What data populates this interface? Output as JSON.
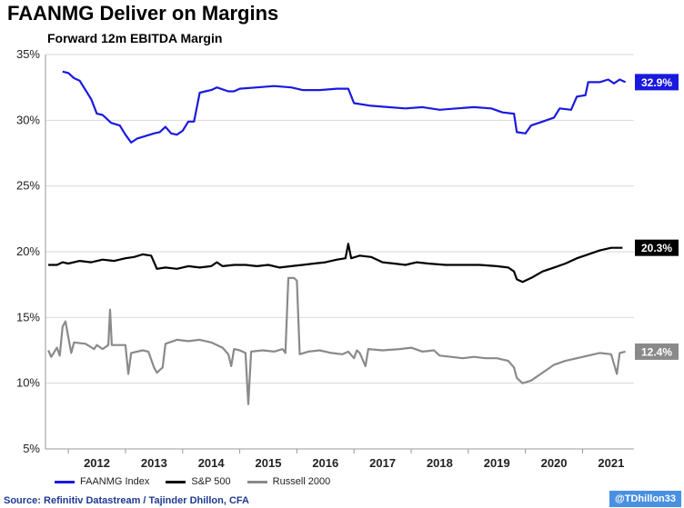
{
  "chart_data": {
    "type": "line",
    "title": "FAANMG Deliver on Margins",
    "subtitle": "Forward 12m EBITDA Margin",
    "xlabel": "",
    "ylabel": "",
    "y_ticks": [
      "5%",
      "10%",
      "15%",
      "20%",
      "25%",
      "30%",
      "35%"
    ],
    "ylim": [
      5,
      35
    ],
    "x_ticks": [
      "2012",
      "2013",
      "2014",
      "2015",
      "2016",
      "2017",
      "2018",
      "2019",
      "2020",
      "2021"
    ],
    "xlim": [
      2011.6,
      2021.9
    ],
    "grid": "horizontal",
    "legend_position": "bottom",
    "series": [
      {
        "name": "FAANMG Index",
        "color": "#1a1adf",
        "end_label": "32.9%",
        "points": [
          [
            2011.9,
            33.7
          ],
          [
            2012.0,
            33.6
          ],
          [
            2012.1,
            33.2
          ],
          [
            2012.2,
            33.0
          ],
          [
            2012.3,
            32.3
          ],
          [
            2012.4,
            31.6
          ],
          [
            2012.5,
            30.5
          ],
          [
            2012.6,
            30.4
          ],
          [
            2012.75,
            29.8
          ],
          [
            2012.9,
            29.6
          ],
          [
            2013.0,
            28.9
          ],
          [
            2013.1,
            28.3
          ],
          [
            2013.2,
            28.6
          ],
          [
            2013.35,
            28.8
          ],
          [
            2013.5,
            29.0
          ],
          [
            2013.6,
            29.1
          ],
          [
            2013.7,
            29.5
          ],
          [
            2013.8,
            29.0
          ],
          [
            2013.9,
            28.9
          ],
          [
            2014.0,
            29.2
          ],
          [
            2014.1,
            29.9
          ],
          [
            2014.2,
            29.9
          ],
          [
            2014.3,
            32.1
          ],
          [
            2014.4,
            32.2
          ],
          [
            2014.5,
            32.3
          ],
          [
            2014.6,
            32.5
          ],
          [
            2014.8,
            32.2
          ],
          [
            2014.9,
            32.2
          ],
          [
            2015.0,
            32.4
          ],
          [
            2015.3,
            32.5
          ],
          [
            2015.6,
            32.6
          ],
          [
            2015.9,
            32.5
          ],
          [
            2016.1,
            32.3
          ],
          [
            2016.4,
            32.3
          ],
          [
            2016.7,
            32.4
          ],
          [
            2016.9,
            32.4
          ],
          [
            2017.0,
            31.3
          ],
          [
            2017.3,
            31.1
          ],
          [
            2017.6,
            31.0
          ],
          [
            2017.9,
            30.9
          ],
          [
            2018.2,
            31.0
          ],
          [
            2018.5,
            30.8
          ],
          [
            2018.8,
            30.9
          ],
          [
            2019.1,
            31.0
          ],
          [
            2019.4,
            30.9
          ],
          [
            2019.6,
            30.6
          ],
          [
            2019.8,
            30.5
          ],
          [
            2019.85,
            29.1
          ],
          [
            2020.0,
            29.0
          ],
          [
            2020.1,
            29.6
          ],
          [
            2020.3,
            29.9
          ],
          [
            2020.5,
            30.2
          ],
          [
            2020.6,
            30.9
          ],
          [
            2020.8,
            30.8
          ],
          [
            2020.9,
            31.8
          ],
          [
            2021.05,
            31.9
          ],
          [
            2021.1,
            32.9
          ],
          [
            2021.3,
            32.9
          ],
          [
            2021.45,
            33.1
          ],
          [
            2021.55,
            32.8
          ],
          [
            2021.65,
            33.1
          ],
          [
            2021.75,
            32.9
          ]
        ]
      },
      {
        "name": "S&P 500",
        "color": "#000000",
        "end_label": "20.3%",
        "points": [
          [
            2011.65,
            19.0
          ],
          [
            2011.8,
            19.0
          ],
          [
            2011.9,
            19.2
          ],
          [
            2012.0,
            19.1
          ],
          [
            2012.2,
            19.3
          ],
          [
            2012.4,
            19.2
          ],
          [
            2012.6,
            19.4
          ],
          [
            2012.8,
            19.3
          ],
          [
            2013.0,
            19.5
          ],
          [
            2013.15,
            19.6
          ],
          [
            2013.3,
            19.8
          ],
          [
            2013.45,
            19.7
          ],
          [
            2013.55,
            18.7
          ],
          [
            2013.7,
            18.8
          ],
          [
            2013.9,
            18.7
          ],
          [
            2014.1,
            18.9
          ],
          [
            2014.3,
            18.8
          ],
          [
            2014.5,
            18.9
          ],
          [
            2014.6,
            19.2
          ],
          [
            2014.7,
            18.9
          ],
          [
            2014.9,
            19.0
          ],
          [
            2015.1,
            19.0
          ],
          [
            2015.3,
            18.9
          ],
          [
            2015.5,
            19.0
          ],
          [
            2015.7,
            18.8
          ],
          [
            2015.9,
            18.9
          ],
          [
            2016.1,
            19.0
          ],
          [
            2016.3,
            19.1
          ],
          [
            2016.5,
            19.2
          ],
          [
            2016.7,
            19.4
          ],
          [
            2016.85,
            19.5
          ],
          [
            2016.9,
            20.6
          ],
          [
            2016.95,
            19.5
          ],
          [
            2017.1,
            19.7
          ],
          [
            2017.3,
            19.6
          ],
          [
            2017.5,
            19.2
          ],
          [
            2017.7,
            19.1
          ],
          [
            2017.9,
            19.0
          ],
          [
            2018.1,
            19.2
          ],
          [
            2018.3,
            19.1
          ],
          [
            2018.6,
            19.0
          ],
          [
            2018.9,
            19.0
          ],
          [
            2019.2,
            19.0
          ],
          [
            2019.5,
            18.9
          ],
          [
            2019.7,
            18.8
          ],
          [
            2019.8,
            18.5
          ],
          [
            2019.85,
            17.9
          ],
          [
            2019.95,
            17.7
          ],
          [
            2020.1,
            18.0
          ],
          [
            2020.3,
            18.5
          ],
          [
            2020.5,
            18.8
          ],
          [
            2020.7,
            19.1
          ],
          [
            2020.9,
            19.5
          ],
          [
            2021.1,
            19.8
          ],
          [
            2021.3,
            20.1
          ],
          [
            2021.5,
            20.3
          ],
          [
            2021.7,
            20.3
          ]
        ]
      },
      {
        "name": "Russell 2000",
        "color": "#8a8a8a",
        "end_label": "12.4%",
        "points": [
          [
            2011.65,
            12.5
          ],
          [
            2011.7,
            12.0
          ],
          [
            2011.8,
            12.7
          ],
          [
            2011.85,
            12.1
          ],
          [
            2011.9,
            14.3
          ],
          [
            2011.95,
            14.7
          ],
          [
            2012.0,
            13.5
          ],
          [
            2012.05,
            12.3
          ],
          [
            2012.1,
            13.1
          ],
          [
            2012.3,
            13.0
          ],
          [
            2012.45,
            12.6
          ],
          [
            2012.5,
            12.9
          ],
          [
            2012.6,
            12.6
          ],
          [
            2012.7,
            12.9
          ],
          [
            2012.73,
            15.6
          ],
          [
            2012.76,
            12.9
          ],
          [
            2012.9,
            12.9
          ],
          [
            2013.0,
            12.9
          ],
          [
            2013.05,
            10.7
          ],
          [
            2013.1,
            12.3
          ],
          [
            2013.3,
            12.5
          ],
          [
            2013.4,
            12.4
          ],
          [
            2013.5,
            11.2
          ],
          [
            2013.55,
            10.8
          ],
          [
            2013.65,
            11.2
          ],
          [
            2013.7,
            13.0
          ],
          [
            2013.9,
            13.3
          ],
          [
            2014.1,
            13.2
          ],
          [
            2014.3,
            13.3
          ],
          [
            2014.5,
            13.1
          ],
          [
            2014.7,
            12.7
          ],
          [
            2014.8,
            12.2
          ],
          [
            2014.85,
            11.3
          ],
          [
            2014.9,
            12.6
          ],
          [
            2015.0,
            12.5
          ],
          [
            2015.1,
            12.3
          ],
          [
            2015.15,
            8.4
          ],
          [
            2015.2,
            12.4
          ],
          [
            2015.4,
            12.5
          ],
          [
            2015.6,
            12.4
          ],
          [
            2015.75,
            12.6
          ],
          [
            2015.8,
            12.3
          ],
          [
            2015.85,
            18.0
          ],
          [
            2015.95,
            18.0
          ],
          [
            2016.0,
            17.8
          ],
          [
            2016.05,
            12.2
          ],
          [
            2016.2,
            12.4
          ],
          [
            2016.4,
            12.5
          ],
          [
            2016.6,
            12.3
          ],
          [
            2016.8,
            12.2
          ],
          [
            2016.9,
            12.4
          ],
          [
            2017.0,
            11.9
          ],
          [
            2017.05,
            12.5
          ],
          [
            2017.1,
            12.3
          ],
          [
            2017.2,
            11.3
          ],
          [
            2017.25,
            12.6
          ],
          [
            2017.5,
            12.5
          ],
          [
            2017.8,
            12.6
          ],
          [
            2018.0,
            12.7
          ],
          [
            2018.2,
            12.4
          ],
          [
            2018.4,
            12.5
          ],
          [
            2018.5,
            12.1
          ],
          [
            2018.7,
            12.0
          ],
          [
            2018.9,
            11.9
          ],
          [
            2019.1,
            12.0
          ],
          [
            2019.3,
            11.9
          ],
          [
            2019.5,
            11.9
          ],
          [
            2019.7,
            11.7
          ],
          [
            2019.8,
            11.2
          ],
          [
            2019.85,
            10.4
          ],
          [
            2019.95,
            10.0
          ],
          [
            2020.1,
            10.2
          ],
          [
            2020.3,
            10.8
          ],
          [
            2020.5,
            11.4
          ],
          [
            2020.7,
            11.7
          ],
          [
            2020.9,
            11.9
          ],
          [
            2021.1,
            12.1
          ],
          [
            2021.3,
            12.3
          ],
          [
            2021.5,
            12.2
          ],
          [
            2021.6,
            10.7
          ],
          [
            2021.65,
            12.3
          ],
          [
            2021.75,
            12.4
          ]
        ]
      }
    ]
  },
  "source": "Source: Refinitiv Datastream / Tajinder Dhillon, CFA",
  "handle": "@TDhillon33"
}
